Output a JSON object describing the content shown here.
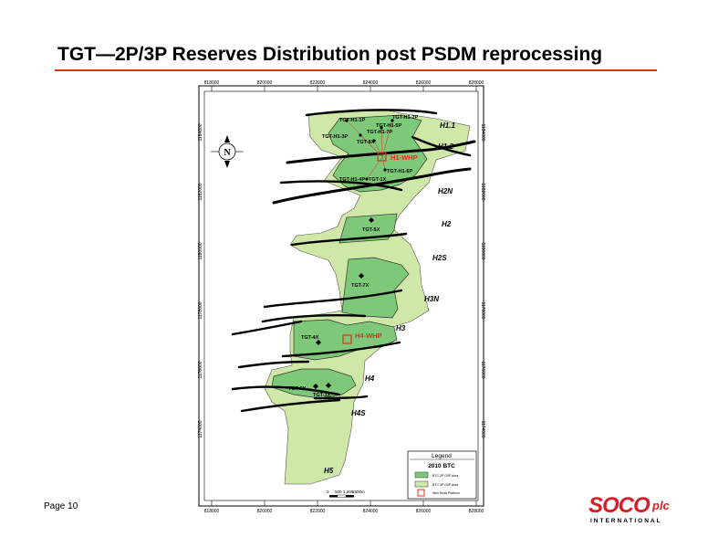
{
  "title": "TGT—2P/3P Reserves Distribution post PSDM reprocessing",
  "page_number": "Page 10",
  "logo": {
    "main": "SOCO",
    "suffix": "plc",
    "sub": "INTERNATIONAL",
    "color": "#d21f26"
  },
  "map": {
    "x_ticks": [
      "818000",
      "820000",
      "822000",
      "824000",
      "826000",
      "828000"
    ],
    "y_ticks": [
      "1184000",
      "1182000",
      "1180000",
      "1178000",
      "1176000",
      "1174000"
    ],
    "north_label": "N",
    "fault_blocks": [
      "H1.1",
      "H1.2",
      "H2N",
      "H2",
      "H2S",
      "H3N",
      "H3",
      "H4",
      "H4S",
      "H5"
    ],
    "wells": [
      "TGT-H1-1P",
      "TGT-H1-2P",
      "TGT-H1-5P",
      "TGT-H1-7P",
      "TGT-H1-3P",
      "TGT-8X",
      "TGT-H1-6P",
      "TGT-H1-4P",
      "TGT-1X",
      "TGT-5X",
      "TGT-7X",
      "TGT-4X",
      "TGT-6X",
      "TGT-3X"
    ],
    "platforms": [
      "H1-WHP",
      "H4-WHP"
    ],
    "legend": {
      "title": "Legend",
      "subtitle": "2010 BTC",
      "items": [
        "BTC 2P GIIP Area",
        "BTC 3P GIIP Area",
        "Well Head Platform"
      ]
    },
    "scale": [
      "0",
      "500",
      "1,000",
      "1500m"
    ],
    "colors": {
      "p2": "#7ec87a",
      "p3": "#cfe8a8",
      "fault": "#000000",
      "platform": "#e0301e"
    }
  }
}
